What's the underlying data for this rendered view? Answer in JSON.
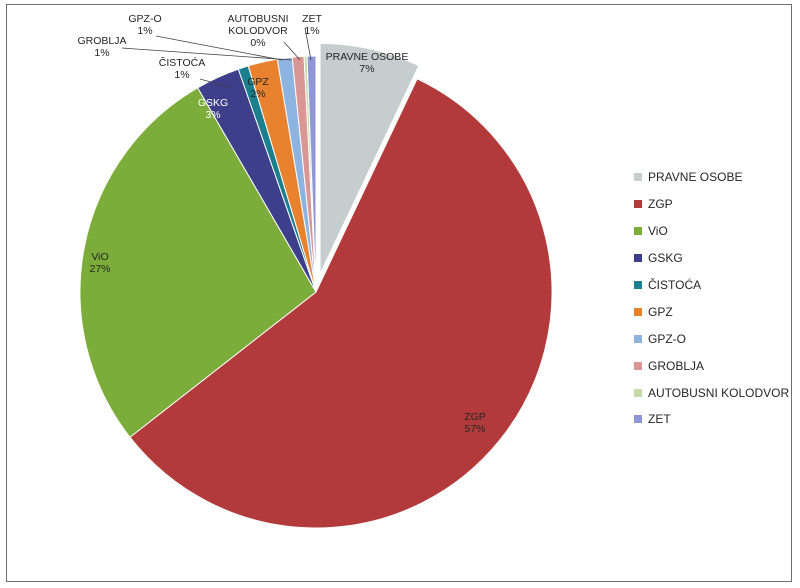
{
  "chart_data": {
    "type": "pie",
    "title": "",
    "start_angle_deg": 0,
    "direction": "clockwise",
    "exploded": [
      "PRAVNE OSOBE"
    ],
    "legend_position": "right",
    "slices": [
      {
        "label": "PRAVNE OSOBE",
        "value": 7,
        "value_label": "7%",
        "color": "#C5CDCF",
        "show_label": true
      },
      {
        "label": "ZGP",
        "value": 57,
        "value_label": "57%",
        "color": "#B23A3A",
        "show_label": true
      },
      {
        "label": "ViO",
        "value": 27,
        "value_label": "27%",
        "color": "#7CAC3A",
        "show_label": true
      },
      {
        "label": "GSKG",
        "value": 3,
        "value_label": "3%",
        "color": "#3D3F8B",
        "show_label": true
      },
      {
        "label": "ČISTOĆA",
        "value": 0.7,
        "value_label": "1%",
        "color": "#1C7F8E",
        "show_label": true
      },
      {
        "label": "GPZ",
        "value": 2,
        "value_label": "2%",
        "color": "#E8822F",
        "show_label": true
      },
      {
        "label": "GPZ-O",
        "value": 1,
        "value_label": "1%",
        "color": "#8DB4E0",
        "show_label": true
      },
      {
        "label": "GROBLJA",
        "value": 0.8,
        "value_label": "1%",
        "color": "#D99694",
        "show_label": true
      },
      {
        "label": "AUTOBUSNI KOLODVOR",
        "value": 0.2,
        "value_label": "0%",
        "color": "#C3DCA5",
        "show_label": true
      },
      {
        "label": "ZET",
        "value": 0.6,
        "value_label": "1%",
        "color": "#8F96D6",
        "show_label": true
      }
    ]
  }
}
